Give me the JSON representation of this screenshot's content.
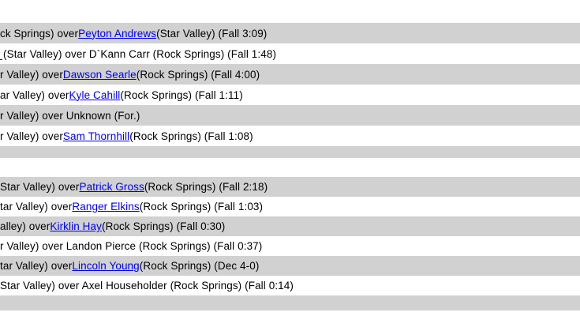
{
  "colors": {
    "row_shade": "#d1d1d1",
    "row_plain": "#ffffff",
    "link_blue": "#0000ee",
    "text": "#000000"
  },
  "sections": [
    {
      "name": "results-group-1",
      "rows": [
        {
          "shade": true,
          "pre": "ck Springs) over ",
          "link": "Peyton Andrews",
          "post": " (Star Valley) (Fall 3:09)"
        },
        {
          "shade": false,
          "lead_fragment": true,
          "pre": "(Star Valley) over D`Kann Carr (Rock Springs) (Fall 1:48)",
          "link": "",
          "post": ""
        },
        {
          "shade": true,
          "pre": "r Valley) over ",
          "link": "Dawson Searle",
          "post": " (Rock Springs) (Fall 4:00)"
        },
        {
          "shade": false,
          "pre": "ar Valley) over ",
          "link": "Kyle Cahill",
          "post": " (Rock Springs) (Fall 1:11)"
        },
        {
          "shade": true,
          "pre": "r Valley) over Unknown (For.)",
          "link": "",
          "post": ""
        },
        {
          "shade": false,
          "pre": "r Valley) over ",
          "link": "Sam Thornhill",
          "post": " (Rock Springs) (Fall 1:08)"
        },
        {
          "shade": true,
          "empty": true
        }
      ]
    },
    {
      "name": "results-group-2",
      "rows": [
        {
          "shade": true,
          "pre": "Star Valley) over ",
          "link": "Patrick Gross",
          "post": " (Rock Springs) (Fall 2:18)"
        },
        {
          "shade": false,
          "pre": "tar Valley) over ",
          "link": "Ranger Elkins",
          "post": " (Rock Springs) (Fall 1:03)"
        },
        {
          "shade": true,
          "pre": "alley) over ",
          "link": "Kirklin Hay",
          "post": " (Rock Springs) (Fall 0:30)"
        },
        {
          "shade": false,
          "pre": "r Valley) over Landon Pierce (Rock Springs) (Fall 0:37)",
          "link": "",
          "post": ""
        },
        {
          "shade": true,
          "pre": "tar Valley) over ",
          "link": "Lincoln Young",
          "post": " (Rock Springs) (Dec 4-0)"
        },
        {
          "shade": false,
          "pre": "Star Valley) over Axel Householder (Rock Springs) (Fall 0:14)",
          "link": "",
          "post": ""
        },
        {
          "shade": true,
          "empty": true
        }
      ]
    }
  ]
}
